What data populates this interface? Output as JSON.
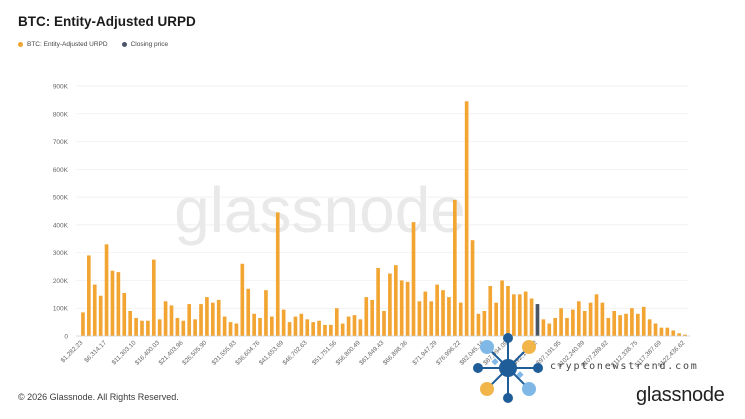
{
  "header": {
    "title": "BTC: Entity-Adjusted URPD"
  },
  "legend": {
    "items": [
      {
        "label": "BTC: Entity-Adjusted URPD",
        "color": "#f2a533"
      },
      {
        "label": "Closing price",
        "color": "#4a5566"
      }
    ]
  },
  "watermark": {
    "brand": "glassnode",
    "site": "cryptonewstrend.com"
  },
  "footer": {
    "copyright": "© 2026 Glassnode. All Rights Reserved.",
    "logo": "glassnode"
  },
  "colors": {
    "bar": "#f2a533",
    "closing_bar": "#4a5566",
    "grid": "#eeeeee",
    "tick": "#666666"
  },
  "chart_data": {
    "type": "bar",
    "title": "BTC: Entity-Adjusted URPD",
    "ylim": [
      0,
      900000
    ],
    "y_ticks": [
      "0",
      "100K",
      "200K",
      "300K",
      "400K",
      "500K",
      "600K",
      "700K",
      "800K",
      "900K"
    ],
    "x_tick_labels": [
      "$1,282.23",
      "$6,314.17",
      "$11,303.10",
      "$16,400.03",
      "$21,403.96",
      "$26,505.90",
      "$31,555.83",
      "$36,604.76",
      "$41,653.69",
      "$46,702.63",
      "$51,751.56",
      "$56,800.49",
      "$61,849.43",
      "$66,898.36",
      "$71,947.29",
      "$76,996.22",
      "$82,045.16",
      "$87,094.09",
      "$92,143.02",
      "$97,191.95",
      "$102,240.89",
      "$107,289.82",
      "$112,338.75",
      "$117,387.69",
      "$122,436.62"
    ],
    "closing_price_index": 77,
    "series": [
      {
        "name": "BTC: Entity-Adjusted URPD",
        "values": [
          85000,
          290000,
          185000,
          145000,
          330000,
          235000,
          230000,
          155000,
          90000,
          65000,
          55000,
          55000,
          275000,
          60000,
          125000,
          110000,
          65000,
          55000,
          115000,
          60000,
          115000,
          140000,
          120000,
          130000,
          70000,
          50000,
          45000,
          260000,
          170000,
          80000,
          65000,
          165000,
          70000,
          445000,
          95000,
          50000,
          70000,
          80000,
          60000,
          50000,
          55000,
          40000,
          40000,
          100000,
          45000,
          70000,
          75000,
          60000,
          140000,
          130000,
          245000,
          90000,
          225000,
          255000,
          200000,
          195000,
          410000,
          125000,
          160000,
          125000,
          185000,
          165000,
          140000,
          490000,
          120000,
          845000,
          345000,
          80000,
          90000,
          180000,
          120000,
          200000,
          180000,
          150000,
          150000,
          160000,
          135000,
          115000,
          60000,
          45000,
          65000,
          100000,
          65000,
          95000,
          125000,
          90000,
          120000,
          150000,
          120000,
          65000,
          90000,
          75000,
          80000,
          100000,
          80000,
          105000,
          60000,
          45000,
          30000,
          30000,
          20000,
          10000,
          5000
        ]
      }
    ]
  }
}
